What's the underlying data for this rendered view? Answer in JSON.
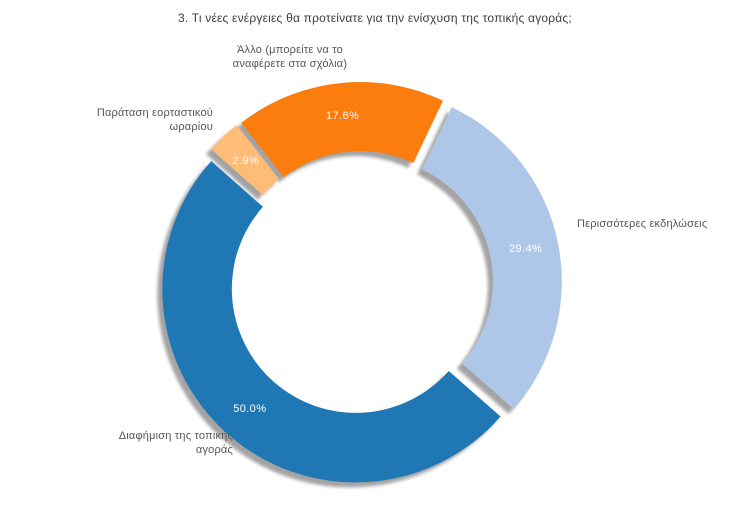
{
  "chart_data": {
    "type": "pie",
    "subtype": "donut",
    "title": "3. Τι νέες ενέργειες θα προτείνατε για την ενίσχυση της τοπικής αγοράς;",
    "unit": "%",
    "categories": [
      "Άλλο (μπορείτε να το αναφέρετε στα σχόλια)",
      "Περισσότερες εκδηλώσεις",
      "Διαφήμιση της τοπικής αγοράς",
      "Παράταση εορταστικού ωραρίου"
    ],
    "values": [
      17.6,
      29.4,
      50.0,
      2.9
    ],
    "slices": [
      {
        "label": "Άλλο (μπορείτε να το αναφέρετε στα σχόλια)",
        "value": 17.6,
        "value_label": "17.6%",
        "color": "#FA7D0E"
      },
      {
        "label": "Περισσότερες εκδηλώσεις",
        "value": 29.4,
        "value_label": "29.4%",
        "color": "#AEC7E8"
      },
      {
        "label": "Διαφήμιση της τοπικής αγοράς",
        "value": 50.0,
        "value_label": "50.0%",
        "color": "#1F77B4"
      },
      {
        "label": "Παράταση εορταστικού ωραρίου",
        "value": 2.9,
        "value_label": "2.9%",
        "color": "#FFBB78"
      }
    ],
    "legend_position": "none",
    "value_labels_position": "inside",
    "category_labels_position": "outside",
    "direction": "clockwise",
    "start_angle_deg": -38,
    "donut_hole_ratio": 0.64,
    "exploded": true,
    "shadow_color": "#a3a3a3",
    "background_color": "#ffffff",
    "title_color": "#3d3d3d",
    "category_label_color": "#565656"
  }
}
